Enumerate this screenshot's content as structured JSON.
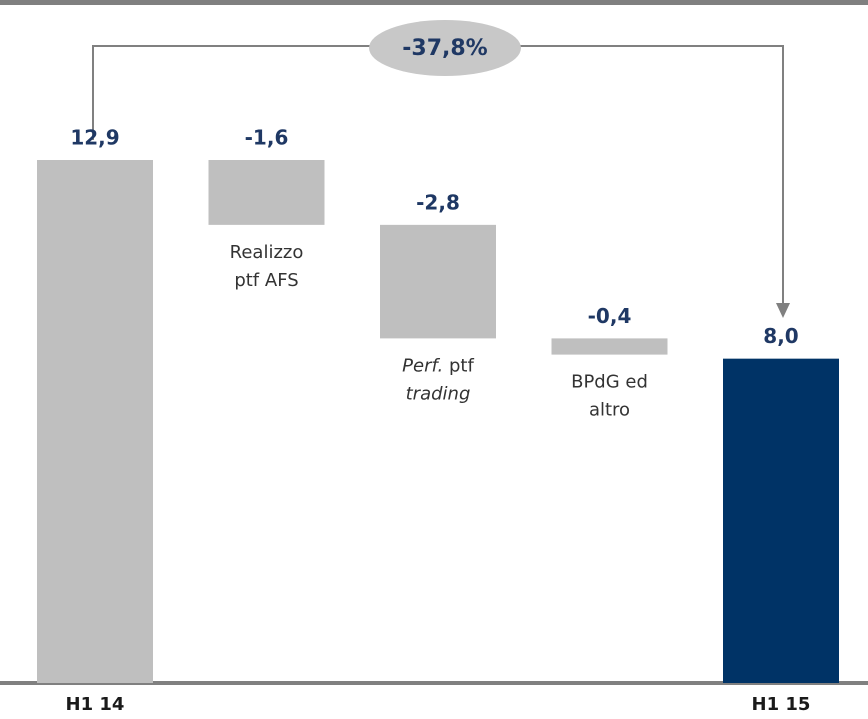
{
  "chart_data": {
    "type": "waterfall",
    "categories": [
      [
        "H1 14"
      ],
      [
        "Realizzo",
        "ptf AFS"
      ],
      [
        "Perf. ptf",
        "trading"
      ],
      [
        "BPdG ed",
        "altro"
      ],
      [
        "H1 15"
      ]
    ],
    "italic_words": [
      "Perf.",
      "trading"
    ],
    "values": [
      12.9,
      -1.6,
      -2.8,
      -0.4,
      8.0
    ],
    "value_labels": [
      "12,9",
      "-1,6",
      "-2,8",
      "-0,4",
      "8,0"
    ],
    "totals": [
      true,
      false,
      false,
      false,
      true
    ],
    "colors": [
      "#bfbfbf",
      "#bfbfbf",
      "#bfbfbf",
      "#bfbfbf",
      "#003366"
    ],
    "annotation": "-37,8%"
  }
}
